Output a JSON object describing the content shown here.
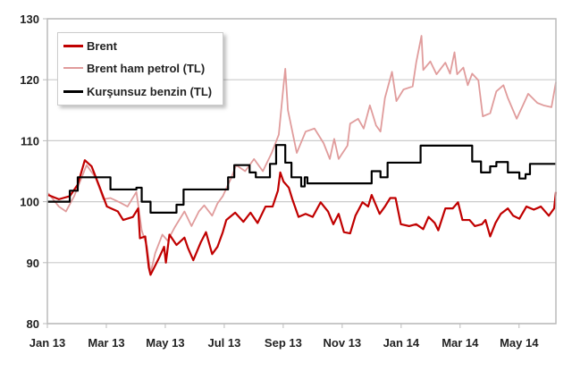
{
  "chart_data": {
    "type": "line",
    "title": "",
    "xlabel": "",
    "ylabel": "",
    "x_unit": "months since Jan 2013",
    "xlim": [
      0,
      17.25
    ],
    "ylim": [
      80,
      130
    ],
    "yticks": [
      80,
      90,
      100,
      110,
      120,
      130
    ],
    "xticks": [
      {
        "x": 0,
        "label": "Jan 13"
      },
      {
        "x": 2,
        "label": "Mar 13"
      },
      {
        "x": 4,
        "label": "May 13"
      },
      {
        "x": 6,
        "label": "Jul 13"
      },
      {
        "x": 8,
        "label": "Sep 13"
      },
      {
        "x": 10,
        "label": "Nov 13"
      },
      {
        "x": 12,
        "label": "Jan 14"
      },
      {
        "x": 14,
        "label": "Mar 14"
      },
      {
        "x": 16,
        "label": "May 14"
      }
    ],
    "grid": "horizontal",
    "legend_position": "top-left",
    "series": [
      {
        "name": "Brent",
        "color": "#c00000",
        "width": 2.2,
        "style": "line",
        "points": [
          [
            0.03,
            101.1
          ],
          [
            0.39,
            100.4
          ],
          [
            0.76,
            100.9
          ],
          [
            1.03,
            102.8
          ],
          [
            1.27,
            106.8
          ],
          [
            1.5,
            105.8
          ],
          [
            1.78,
            102.3
          ],
          [
            2.02,
            99.2
          ],
          [
            2.39,
            98.4
          ],
          [
            2.57,
            97
          ],
          [
            2.9,
            97.5
          ],
          [
            3.08,
            98.9
          ],
          [
            3.14,
            94
          ],
          [
            3.32,
            94.3
          ],
          [
            3.44,
            89.2
          ],
          [
            3.5,
            88
          ],
          [
            3.78,
            90.7
          ],
          [
            3.96,
            92.6
          ],
          [
            4.02,
            90
          ],
          [
            4.14,
            94.6
          ],
          [
            4.38,
            92.9
          ],
          [
            4.65,
            94.1
          ],
          [
            4.77,
            92.4
          ],
          [
            4.95,
            90.4
          ],
          [
            5.2,
            93.3
          ],
          [
            5.38,
            95
          ],
          [
            5.59,
            91.4
          ],
          [
            5.77,
            92.6
          ],
          [
            5.95,
            95
          ],
          [
            6.07,
            97
          ],
          [
            6.37,
            98.2
          ],
          [
            6.65,
            96.7
          ],
          [
            6.89,
            98.2
          ],
          [
            7.13,
            96.5
          ],
          [
            7.4,
            99.2
          ],
          [
            7.64,
            99.2
          ],
          [
            7.82,
            101.8
          ],
          [
            7.9,
            104.8
          ],
          [
            8.01,
            103.3
          ],
          [
            8.19,
            102.3
          ],
          [
            8.31,
            100.4
          ],
          [
            8.52,
            97.5
          ],
          [
            8.76,
            98
          ],
          [
            9.0,
            97.5
          ],
          [
            9.27,
            99.9
          ],
          [
            9.52,
            98.4
          ],
          [
            9.7,
            96.3
          ],
          [
            9.88,
            98
          ],
          [
            10.06,
            95
          ],
          [
            10.27,
            94.8
          ],
          [
            10.45,
            97.7
          ],
          [
            10.69,
            99.9
          ],
          [
            10.88,
            99.2
          ],
          [
            11.0,
            101.1
          ],
          [
            11.27,
            98
          ],
          [
            11.45,
            99.2
          ],
          [
            11.63,
            100.6
          ],
          [
            11.81,
            100.6
          ],
          [
            11.99,
            96.3
          ],
          [
            12.27,
            96
          ],
          [
            12.51,
            96.3
          ],
          [
            12.75,
            95.5
          ],
          [
            12.93,
            97.5
          ],
          [
            13.14,
            96.5
          ],
          [
            13.26,
            95.3
          ],
          [
            13.5,
            98.9
          ],
          [
            13.75,
            98.9
          ],
          [
            13.93,
            99.9
          ],
          [
            14.08,
            97
          ],
          [
            14.32,
            97
          ],
          [
            14.5,
            96
          ],
          [
            14.74,
            96.3
          ],
          [
            14.86,
            97
          ],
          [
            15.02,
            94.3
          ],
          [
            15.2,
            96.5
          ],
          [
            15.38,
            98
          ],
          [
            15.62,
            98.9
          ],
          [
            15.8,
            97.7
          ],
          [
            16.01,
            97.2
          ],
          [
            16.25,
            99.2
          ],
          [
            16.5,
            98.7
          ],
          [
            16.74,
            99.2
          ],
          [
            17.01,
            97.7
          ],
          [
            17.19,
            98.9
          ],
          [
            17.25,
            101.6
          ]
        ]
      },
      {
        "name": "Brent ham petrol (TL)",
        "color": "#e09c9c",
        "width": 1.8,
        "style": "line",
        "points": [
          [
            0.03,
            101.4
          ],
          [
            0.39,
            99.2
          ],
          [
            0.63,
            98.4
          ],
          [
            0.91,
            100.9
          ],
          [
            1.15,
            103.8
          ],
          [
            1.33,
            106
          ],
          [
            1.63,
            104
          ],
          [
            1.9,
            100.4
          ],
          [
            2.14,
            100.6
          ],
          [
            2.45,
            99.9
          ],
          [
            2.72,
            99.2
          ],
          [
            3.02,
            101.6
          ],
          [
            3.2,
            95.3
          ],
          [
            3.38,
            92.6
          ],
          [
            3.5,
            88.3
          ],
          [
            3.66,
            91.6
          ],
          [
            3.9,
            94.6
          ],
          [
            4.08,
            93.6
          ],
          [
            4.32,
            95.8
          ],
          [
            4.65,
            98.4
          ],
          [
            4.89,
            96
          ],
          [
            5.14,
            98.4
          ],
          [
            5.32,
            99.4
          ],
          [
            5.59,
            97.7
          ],
          [
            5.77,
            99.7
          ],
          [
            5.95,
            100.9
          ],
          [
            6.13,
            102.8
          ],
          [
            6.25,
            104
          ],
          [
            6.4,
            106
          ],
          [
            6.71,
            105
          ],
          [
            7.01,
            107
          ],
          [
            7.31,
            105
          ],
          [
            7.61,
            108
          ],
          [
            7.85,
            111
          ],
          [
            8.01,
            119
          ],
          [
            8.07,
            121.8
          ],
          [
            8.16,
            115
          ],
          [
            8.46,
            108
          ],
          [
            8.76,
            111.5
          ],
          [
            9.06,
            112
          ],
          [
            9.37,
            109.6
          ],
          [
            9.58,
            107
          ],
          [
            9.73,
            110.3
          ],
          [
            9.88,
            107
          ],
          [
            10.18,
            109.2
          ],
          [
            10.27,
            112.8
          ],
          [
            10.54,
            113.6
          ],
          [
            10.73,
            112
          ],
          [
            10.94,
            115.8
          ],
          [
            11.15,
            112.5
          ],
          [
            11.3,
            111.5
          ],
          [
            11.45,
            117
          ],
          [
            11.69,
            121.3
          ],
          [
            11.84,
            116.5
          ],
          [
            12.08,
            118.4
          ],
          [
            12.39,
            118.9
          ],
          [
            12.51,
            122.8
          ],
          [
            12.69,
            127.2
          ],
          [
            12.75,
            121.6
          ],
          [
            12.99,
            123
          ],
          [
            13.2,
            120.9
          ],
          [
            13.5,
            122.8
          ],
          [
            13.66,
            121
          ],
          [
            13.81,
            124.5
          ],
          [
            13.9,
            120.9
          ],
          [
            14.11,
            122
          ],
          [
            14.26,
            119.1
          ],
          [
            14.41,
            121
          ],
          [
            14.62,
            119.9
          ],
          [
            14.77,
            114
          ],
          [
            15.02,
            114.5
          ],
          [
            15.23,
            118.1
          ],
          [
            15.47,
            119.1
          ],
          [
            15.62,
            117
          ],
          [
            15.92,
            113.6
          ],
          [
            16.13,
            115.8
          ],
          [
            16.31,
            117.7
          ],
          [
            16.62,
            116.2
          ],
          [
            16.83,
            115.8
          ],
          [
            17.1,
            115.5
          ],
          [
            17.25,
            119.6
          ]
        ]
      },
      {
        "name": "Kurşunsuz benzin (TL)",
        "color": "#000000",
        "width": 2.2,
        "style": "step",
        "points": [
          [
            0,
            100
          ],
          [
            0.76,
            101.8
          ],
          [
            1.03,
            104
          ],
          [
            2.14,
            102
          ],
          [
            3.02,
            102.3
          ],
          [
            3.2,
            100
          ],
          [
            3.5,
            98.2
          ],
          [
            4.38,
            99.5
          ],
          [
            4.62,
            102
          ],
          [
            6.13,
            104
          ],
          [
            6.34,
            106
          ],
          [
            6.86,
            104.8
          ],
          [
            7.07,
            104
          ],
          [
            7.55,
            106.2
          ],
          [
            7.76,
            109.3
          ],
          [
            8.07,
            106.4
          ],
          [
            8.28,
            104
          ],
          [
            8.61,
            102.5
          ],
          [
            8.73,
            104
          ],
          [
            8.82,
            103
          ],
          [
            11.0,
            105
          ],
          [
            11.3,
            104
          ],
          [
            11.54,
            106.4
          ],
          [
            12.66,
            109.2
          ],
          [
            14.41,
            106.6
          ],
          [
            14.71,
            104.8
          ],
          [
            15.02,
            105.8
          ],
          [
            15.23,
            106.5
          ],
          [
            15.62,
            104.8
          ],
          [
            16.01,
            103.8
          ],
          [
            16.22,
            104.5
          ],
          [
            16.37,
            106.2
          ],
          [
            17.25,
            106.2
          ]
        ]
      }
    ]
  }
}
